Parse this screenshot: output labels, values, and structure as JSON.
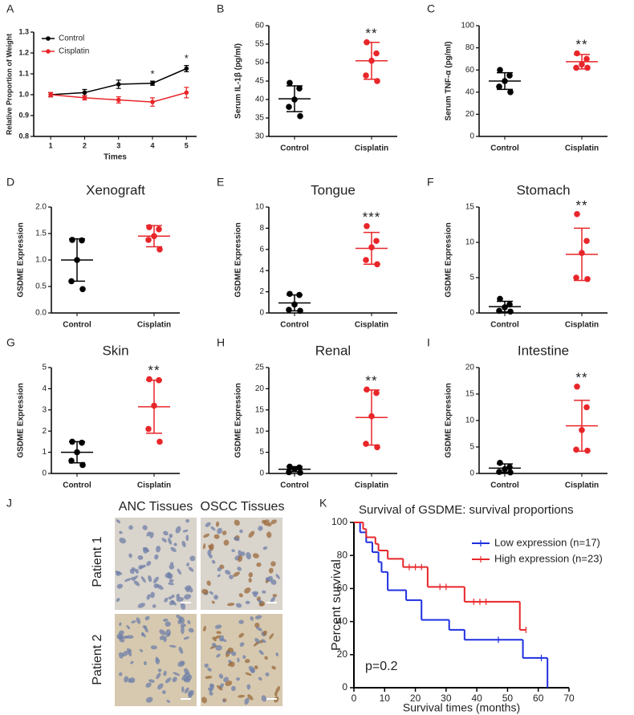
{
  "chart_data": [
    {
      "panel": "A",
      "type": "line",
      "xlabel": "Times",
      "ylabel": "Relative Proportion of Weight",
      "x": [
        1,
        2,
        3,
        4,
        5
      ],
      "xlim": [
        0.5,
        5.3
      ],
      "xticks": [
        1,
        2,
        3,
        4,
        5
      ],
      "ylim": [
        0.8,
        1.3
      ],
      "yticks": [
        0.8,
        0.9,
        {
          "value": 1,
          "label": "1.0"
        },
        1.1,
        1.2,
        1.3
      ],
      "legend": "upper left",
      "series": [
        {
          "name": "Control",
          "color": "#000000",
          "values": [
            1.0,
            1.01,
            1.05,
            1.055,
            1.125
          ],
          "errors": [
            0.01,
            0.015,
            0.02,
            0.01,
            0.015
          ]
        },
        {
          "name": "Cisplatin",
          "color": "#e8262a",
          "values": [
            1.0,
            0.985,
            0.975,
            0.965,
            1.01
          ],
          "errors": [
            0.01,
            0.01,
            0.015,
            0.02,
            0.025
          ]
        }
      ],
      "annotations": [
        {
          "text": "*",
          "x": 4
        },
        {
          "text": "*",
          "x": 5
        }
      ]
    },
    {
      "panel": "B",
      "type": "dotplot",
      "ylabel": "Serum IL-1β (pg/ml)",
      "categories": [
        "Control",
        "Cisplatin"
      ],
      "colors": [
        "#000000",
        "#e8262a"
      ],
      "points": [
        [
          44.5,
          43,
          40,
          38,
          35.5
        ],
        [
          55.5,
          52.5,
          50.5,
          46.5,
          45
        ]
      ],
      "means": [
        40.2,
        50.5
      ],
      "sds": [
        3.5,
        5
      ],
      "ylim": [
        30,
        60
      ],
      "yticks": [
        30,
        35,
        40,
        45,
        50,
        55,
        60
      ],
      "annotation": "**"
    },
    {
      "panel": "C",
      "type": "dotplot",
      "ylabel": "Serum TNF-α (pg/ml)",
      "categories": [
        "Control",
        "Cisplatin"
      ],
      "colors": [
        "#000000",
        "#e8262a"
      ],
      "points": [
        [
          60,
          55,
          50,
          45,
          40
        ],
        [
          75,
          70,
          65,
          62,
          62
        ]
      ],
      "means": [
        50,
        67.5
      ],
      "sds": [
        7.5,
        6.5
      ],
      "ylim": [
        0,
        100
      ],
      "yticks": [
        0,
        20,
        40,
        60,
        80,
        100
      ],
      "annotation": "**"
    },
    {
      "panel": "D",
      "type": "dotplot",
      "title": "Xenograft",
      "ylabel": "GSDME Expression",
      "categories": [
        "Control",
        "Cisplatin"
      ],
      "colors": [
        "#000000",
        "#e8262a"
      ],
      "points": [
        [
          1.38,
          1.37,
          1.0,
          0.6,
          0.45
        ],
        [
          1.62,
          1.58,
          1.45,
          1.38,
          1.2
        ]
      ],
      "means": [
        1.0,
        1.45
      ],
      "sds": [
        0.4,
        0.2
      ],
      "ylim": [
        0,
        2
      ],
      "yticks": [
        {
          "value": 0,
          "label": "0.0"
        },
        0.5,
        {
          "value": 1,
          "label": "1.0"
        },
        1.5,
        {
          "value": 2,
          "label": "2.0"
        }
      ]
    },
    {
      "panel": "E",
      "type": "dotplot",
      "title": "Tongue",
      "ylabel": "GSDME Expression",
      "categories": [
        "Control",
        "Cisplatin"
      ],
      "colors": [
        "#000000",
        "#e8262a"
      ],
      "points": [
        [
          1.8,
          1.7,
          0.8,
          0.3,
          0.2
        ],
        [
          8.2,
          6.8,
          6.2,
          5.0,
          4.6
        ]
      ],
      "means": [
        0.95,
        6.1
      ],
      "sds": [
        0.75,
        1.5
      ],
      "ylim": [
        0,
        10
      ],
      "yticks": [
        0,
        2,
        4,
        6,
        8,
        10
      ],
      "annotation": "***"
    },
    {
      "panel": "F",
      "type": "dotplot",
      "title": "Stomach",
      "ylabel": "GSDME Expression",
      "categories": [
        "Control",
        "Cisplatin"
      ],
      "colors": [
        "#000000",
        "#e8262a"
      ],
      "points": [
        [
          2.0,
          1.2,
          0.8,
          0.3,
          0.2
        ],
        [
          14,
          10.2,
          8.5,
          5,
          4.8
        ]
      ],
      "means": [
        0.9,
        8.3
      ],
      "sds": [
        0.75,
        3.7
      ],
      "ylim": [
        0,
        15
      ],
      "yticks": [
        0,
        5,
        10,
        15
      ],
      "annotation": "**"
    },
    {
      "panel": "G",
      "type": "dotplot",
      "title": "Skin",
      "ylabel": "GSDME Expression",
      "categories": [
        "Control",
        "Cisplatin"
      ],
      "colors": [
        "#000000",
        "#e8262a"
      ],
      "points": [
        [
          1.5,
          1.45,
          1.0,
          0.6,
          0.4
        ],
        [
          4.45,
          4.4,
          3.2,
          2.1,
          1.5
        ]
      ],
      "means": [
        1.0,
        3.15
      ],
      "sds": [
        0.5,
        1.25
      ],
      "ylim": [
        0,
        5
      ],
      "yticks": [
        0,
        1,
        2,
        3,
        4,
        5
      ],
      "annotation": "**"
    },
    {
      "panel": "H",
      "type": "dotplot",
      "title": "Renal",
      "ylabel": "GSDME Expression",
      "categories": [
        "Control",
        "Cisplatin"
      ],
      "colors": [
        "#000000",
        "#e8262a"
      ],
      "points": [
        [
          1.6,
          1.4,
          1.0,
          0.3,
          0.2
        ],
        [
          19.8,
          19,
          13.5,
          7,
          6.2
        ]
      ],
      "means": [
        1.0,
        13.2
      ],
      "sds": [
        0.6,
        6.5
      ],
      "ylim": [
        0,
        25
      ],
      "yticks": [
        0,
        5,
        10,
        15,
        20,
        25
      ],
      "annotation": "**"
    },
    {
      "panel": "I",
      "type": "dotplot",
      "title": "Intestine",
      "ylabel": "GSDME Expression",
      "categories": [
        "Control",
        "Cisplatin"
      ],
      "colors": [
        "#000000",
        "#e8262a"
      ],
      "points": [
        [
          2.0,
          1.2,
          0.8,
          0.3,
          0.2
        ],
        [
          16.4,
          12.5,
          8.2,
          4.5,
          4.3
        ]
      ],
      "means": [
        1.0,
        9.0
      ],
      "sds": [
        0.8,
        4.8
      ],
      "ylim": [
        0,
        20
      ],
      "yticks": [
        0,
        5,
        10,
        15,
        20
      ],
      "annotation": "**"
    },
    {
      "panel": "K",
      "type": "survival",
      "title": "Survival of GSDME: survival proportions",
      "xlabel": "Survival times (months)",
      "ylabel": "Percent survival",
      "xlim": [
        0,
        70
      ],
      "xticks": [
        0,
        10,
        20,
        30,
        40,
        50,
        60,
        70
      ],
      "ylim": [
        0,
        100
      ],
      "yticks": [
        0,
        20,
        40,
        60,
        80,
        100
      ],
      "series": [
        {
          "name": "Low expression (n=17)",
          "color": "#1f2fe0",
          "x": [
            0,
            2,
            4,
            6,
            8,
            9,
            11,
            17,
            22,
            31,
            36,
            55,
            63
          ],
          "values": [
            100,
            94,
            88,
            82,
            76,
            70,
            59,
            53,
            41,
            35,
            29,
            18,
            0
          ],
          "censor_x": [
            47,
            61
          ],
          "censor_values": [
            29,
            18
          ]
        },
        {
          "name": "High expression (n=23)",
          "color": "#e8262a",
          "x": [
            0,
            3,
            4,
            7,
            8,
            11,
            16,
            24,
            36,
            54
          ],
          "values": [
            100,
            96,
            91,
            87,
            83,
            78,
            73,
            61,
            52,
            35
          ],
          "censor_x": [
            18,
            20,
            22,
            28,
            30,
            39,
            41,
            43,
            56
          ],
          "censor_values": [
            73,
            73,
            73,
            61,
            61,
            52,
            52,
            52,
            35
          ]
        }
      ],
      "annotation": "p=0.2"
    }
  ],
  "image_panel": {
    "panel": "J",
    "columns": [
      "ANC Tissues",
      "OSCC Tissues"
    ],
    "rows": [
      "Patient 1",
      "Patient 2"
    ]
  }
}
